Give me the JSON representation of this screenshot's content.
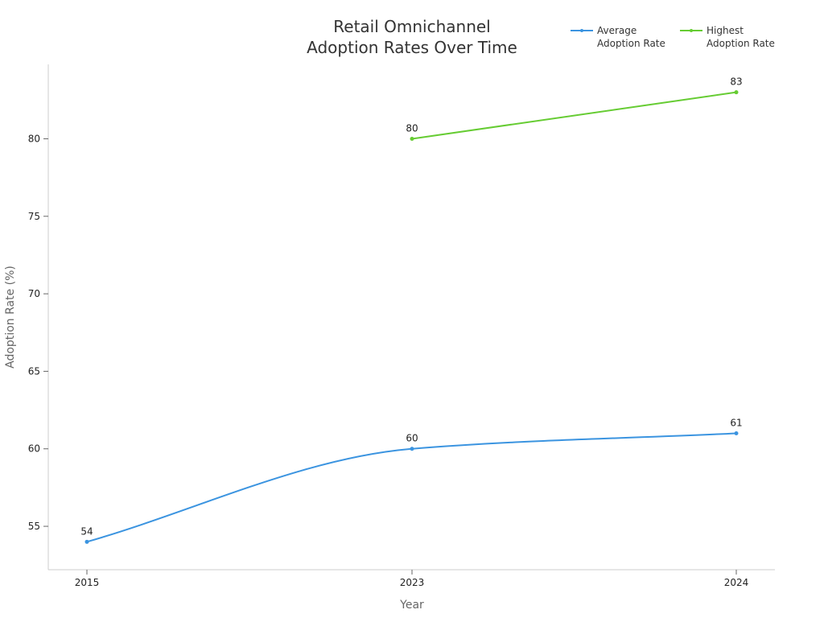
{
  "chart_data": {
    "type": "line",
    "title": "Retail Omnichannel\nAdoption Rates Over Time",
    "xlabel": "Year",
    "ylabel": "Adoption Rate (%)",
    "categories": [
      "2015",
      "2023",
      "2024"
    ],
    "yticks": [
      55,
      60,
      65,
      70,
      75,
      80
    ],
    "ylim": [
      52.2,
      84.8
    ],
    "grid": false,
    "legend_position": "top-right",
    "series": [
      {
        "name": "Average\nAdoption Rate",
        "color": "#3b94e0",
        "values": [
          54,
          60,
          61
        ]
      },
      {
        "name": "Highest\nAdoption Rate",
        "color": "#66cc33",
        "values": [
          null,
          80,
          83
        ]
      }
    ]
  }
}
